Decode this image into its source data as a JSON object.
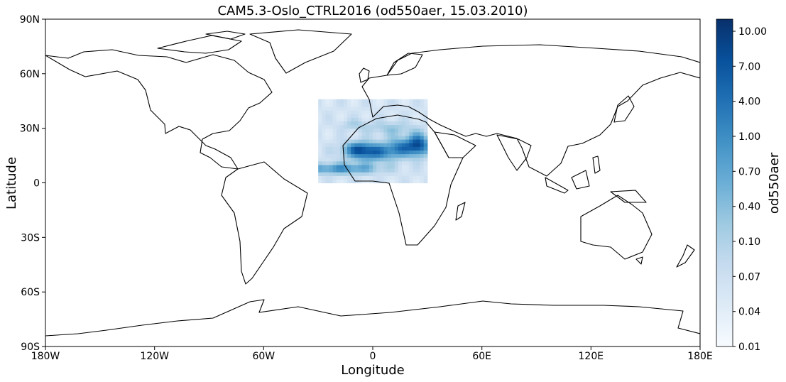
{
  "title": "CAM5.3-Oslo_CTRL2016 (od550aer, 15.03.2010)",
  "xlabel": "Longitude",
  "ylabel": "Latitude",
  "xticks": [
    "180W",
    "120W",
    "60W",
    "0",
    "60E",
    "120E",
    "180E"
  ],
  "yticks": [
    "90N",
    "60N",
    "30N",
    "0",
    "30S",
    "60S",
    "90S"
  ],
  "colorbar": {
    "label": "od550aer",
    "ticks": [
      "10.00",
      "7.00",
      "4.00",
      "1.00",
      "0.70",
      "0.40",
      "0.10",
      "0.07",
      "0.04",
      "0.01"
    ],
    "colors": [
      "#f7fbff",
      "#deebf7",
      "#c6dbef",
      "#9ecae1",
      "#6baed6",
      "#4292c6",
      "#2171b5",
      "#08519c",
      "#08306b"
    ]
  },
  "chart_data": {
    "type": "heatmap",
    "title": "CAM5.3-Oslo_CTRL2016 (od550aer, 15.03.2010)",
    "variable": "od550aer",
    "date": "15.03.2010",
    "xlabel": "Longitude",
    "ylabel": "Latitude",
    "xlim": [
      -180,
      180
    ],
    "ylim": [
      -90,
      90
    ],
    "data_region": {
      "lon": [
        -30,
        30
      ],
      "lat": [
        0,
        45
      ]
    },
    "colorbar_ticks": [
      10.0,
      7.0,
      4.0,
      1.0,
      0.7,
      0.4,
      0.1,
      0.07,
      0.04,
      0.01
    ]
  }
}
